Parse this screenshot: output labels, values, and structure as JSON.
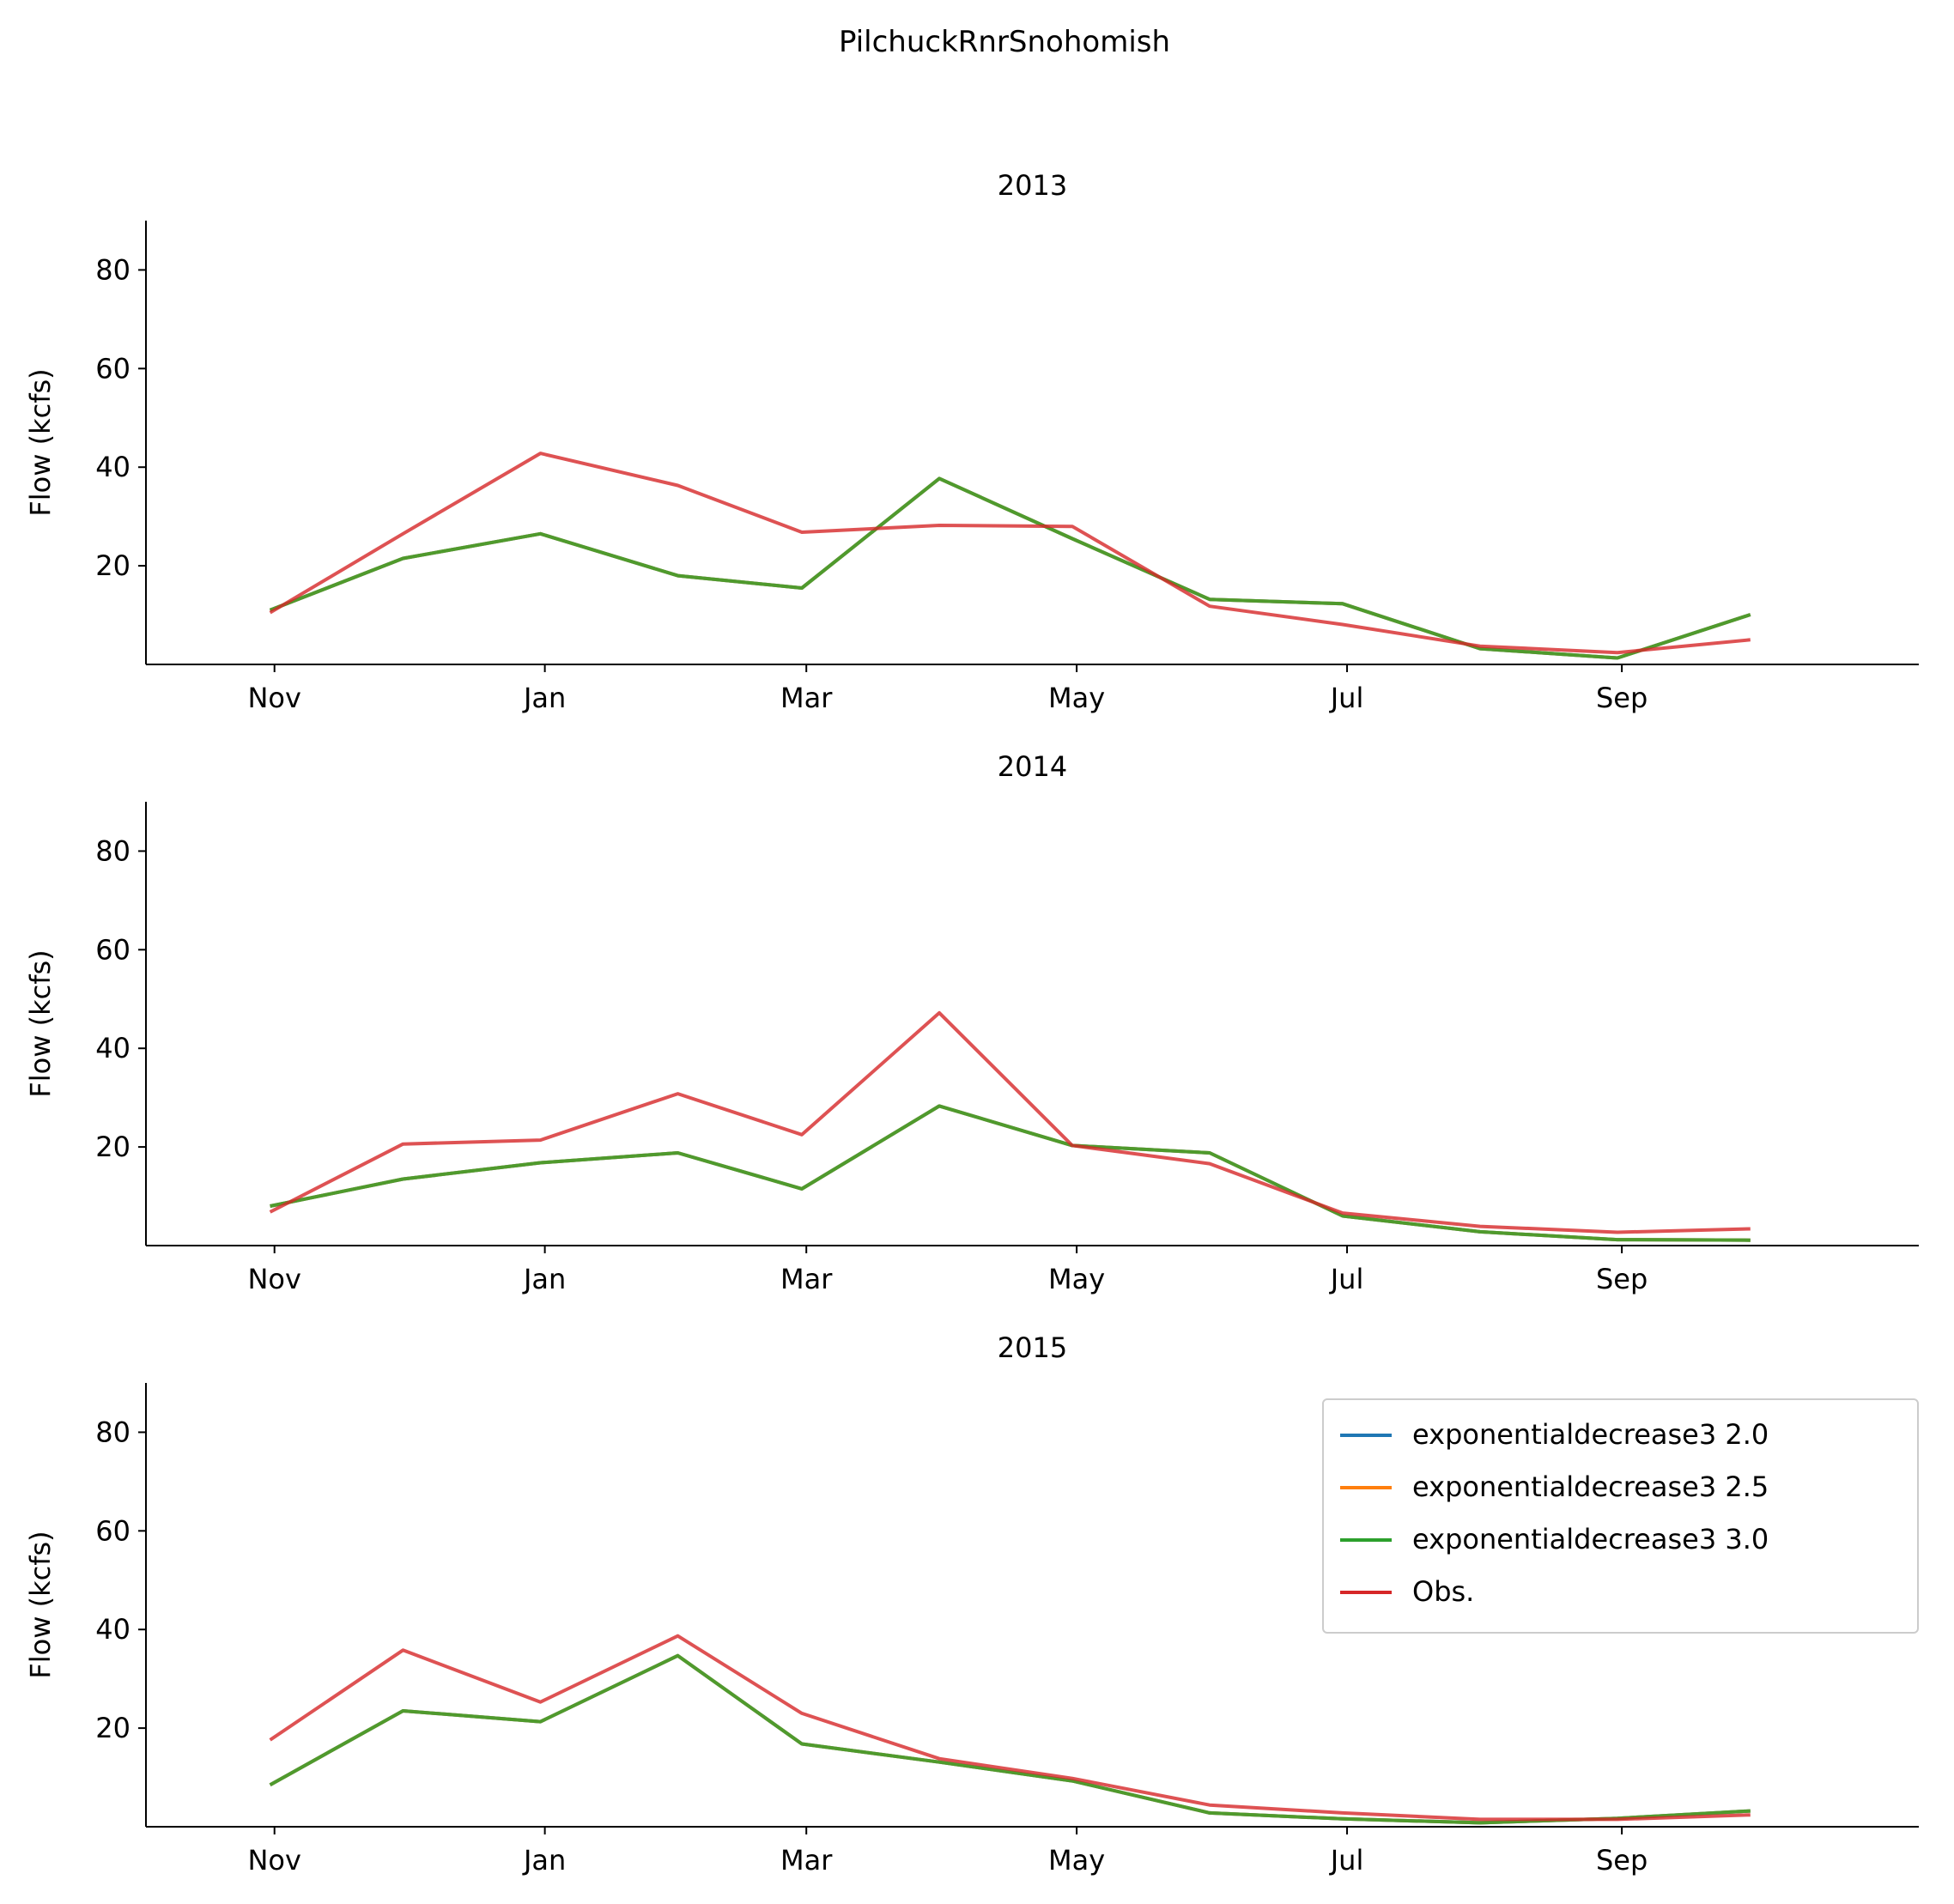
{
  "figure": {
    "suptitle": "PilchuckRnrSnohomish"
  },
  "colors": {
    "exponentialdecrease3 2.0": "#1f77b4",
    "exponentialdecrease3 2.5": "#ff7f0e",
    "exponentialdecrease3 3.0": "#2ca02c",
    "Obs.": "#d62728"
  },
  "chart_data": [
    {
      "type": "line",
      "title": "2013",
      "ylabel": "Flow (kcfs)",
      "xlabel": "",
      "x_tick_labels": [
        "Nov",
        "Jan",
        "Mar",
        "May",
        "Jul",
        "Sep"
      ],
      "x": [
        "Oct 31",
        "Nov 30",
        "Dec 31",
        "Jan 31",
        "Feb 28",
        "Mar 31",
        "Apr 30",
        "May 31",
        "Jun 30",
        "Jul 31",
        "Aug 31",
        "Sep 30"
      ],
      "ylim": [
        0,
        90
      ],
      "yticks": [
        20,
        40,
        60,
        80
      ],
      "legend": false,
      "series": [
        {
          "name": "exponentialdecrease3 2.0",
          "values": [
            11,
            21.5,
            26.5,
            18,
            15.5,
            37.7,
            25.5,
            13.2,
            12.3,
            3.2,
            1.3,
            10.1
          ]
        },
        {
          "name": "exponentialdecrease3 2.5",
          "values": [
            11,
            21.5,
            26.5,
            18,
            15.5,
            37.7,
            25.5,
            13.2,
            12.3,
            3.2,
            1.3,
            10.1
          ]
        },
        {
          "name": "exponentialdecrease3 3.0",
          "values": [
            11,
            21.5,
            26.5,
            18,
            15.5,
            37.7,
            25.5,
            13.2,
            12.3,
            3.2,
            1.3,
            10.1
          ]
        },
        {
          "name": "Obs.",
          "values": [
            10.5,
            26.5,
            42.8,
            36.3,
            26.8,
            28.2,
            28,
            11.8,
            8.1,
            3.7,
            2.4,
            5
          ]
        }
      ]
    },
    {
      "type": "line",
      "title": "2014",
      "ylabel": "Flow (kcfs)",
      "xlabel": "",
      "x_tick_labels": [
        "Nov",
        "Jan",
        "Mar",
        "May",
        "Jul",
        "Sep"
      ],
      "x": [
        "Oct 31",
        "Nov 30",
        "Dec 31",
        "Jan 31",
        "Feb 28",
        "Mar 31",
        "Apr 30",
        "May 31",
        "Jun 30",
        "Jul 31",
        "Aug 31",
        "Sep 30"
      ],
      "ylim": [
        0,
        90
      ],
      "yticks": [
        20,
        40,
        60,
        80
      ],
      "legend": false,
      "series": [
        {
          "name": "exponentialdecrease3 2.0",
          "values": [
            8,
            13.5,
            16.8,
            18.8,
            11.5,
            28.3,
            20.3,
            18.8,
            6,
            2.8,
            1.2,
            1.1
          ]
        },
        {
          "name": "exponentialdecrease3 2.5",
          "values": [
            8,
            13.5,
            16.8,
            18.8,
            11.5,
            28.3,
            20.3,
            18.8,
            6,
            2.8,
            1.2,
            1.1
          ]
        },
        {
          "name": "exponentialdecrease3 3.0",
          "values": [
            8,
            13.5,
            16.8,
            18.8,
            11.5,
            28.3,
            20.3,
            18.8,
            6,
            2.8,
            1.2,
            1.1
          ]
        },
        {
          "name": "Obs.",
          "values": [
            6.8,
            20.6,
            21.4,
            30.8,
            22.5,
            47.2,
            20.3,
            16.6,
            6.6,
            3.9,
            2.7,
            3.4
          ]
        }
      ]
    },
    {
      "type": "line",
      "title": "2015",
      "ylabel": "Flow (kcfs)",
      "xlabel": "",
      "x_tick_labels": [
        "Nov",
        "Jan",
        "Mar",
        "May",
        "Jul",
        "Sep"
      ],
      "x": [
        "Oct 31",
        "Nov 30",
        "Dec 31",
        "Jan 31",
        "Feb 28",
        "Mar 31",
        "Apr 30",
        "May 31",
        "Jun 30",
        "Jul 31",
        "Aug 31",
        "Sep 30"
      ],
      "ylim": [
        0,
        90
      ],
      "yticks": [
        20,
        40,
        60,
        80
      ],
      "legend": true,
      "legend_loc": "upper right",
      "series": [
        {
          "name": "exponentialdecrease3 2.0",
          "values": [
            8.5,
            23.5,
            21.3,
            34.7,
            16.8,
            13.1,
            9.3,
            2.8,
            1.6,
            0.8,
            1.7,
            3.2
          ]
        },
        {
          "name": "exponentialdecrease3 2.5",
          "values": [
            8.5,
            23.5,
            21.3,
            34.7,
            16.8,
            13.1,
            9.3,
            2.8,
            1.6,
            0.8,
            1.7,
            3.2
          ]
        },
        {
          "name": "exponentialdecrease3 3.0",
          "values": [
            8.5,
            23.5,
            21.3,
            34.7,
            16.8,
            13.1,
            9.3,
            2.8,
            1.6,
            0.8,
            1.7,
            3.2
          ]
        },
        {
          "name": "Obs.",
          "values": [
            17.6,
            35.8,
            25.3,
            38.7,
            23,
            13.8,
            9.8,
            4.4,
            2.8,
            1.5,
            1.5,
            2.4
          ]
        }
      ]
    }
  ]
}
